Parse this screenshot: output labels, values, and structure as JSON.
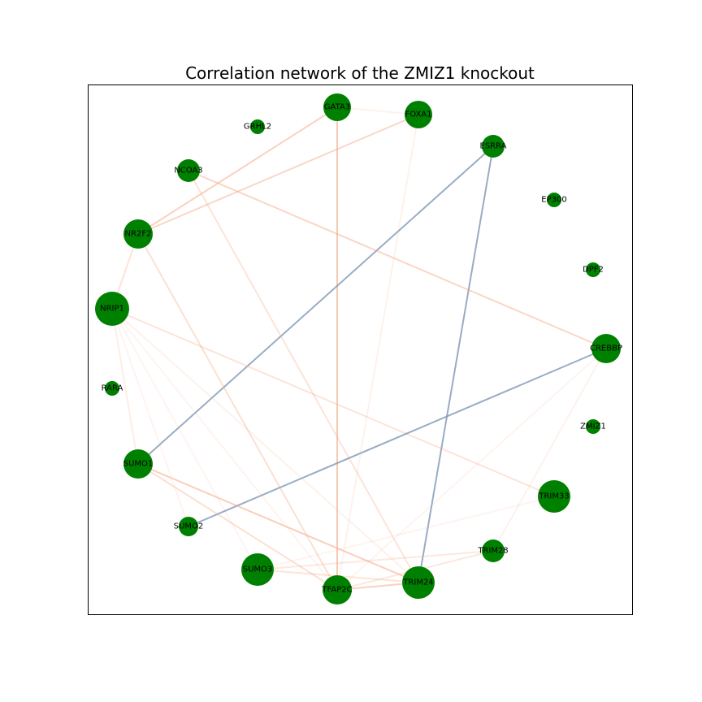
{
  "title": "Correlation network of the ZMIZ1 knockout",
  "colors": {
    "node": "#008000",
    "positive_edge": "#f4a582",
    "negative_edge": "#7f97b5",
    "frame": "#000000"
  },
  "nodes": [
    {
      "id": "GATA3",
      "label": "GATA3"
    },
    {
      "id": "FOXA1",
      "label": "FOXA1"
    },
    {
      "id": "GRHL2",
      "label": "GRHL2"
    },
    {
      "id": "ESRRA",
      "label": "ESRRA"
    },
    {
      "id": "NCOA3",
      "label": "NCOA3"
    },
    {
      "id": "EP300",
      "label": "EP300"
    },
    {
      "id": "NR2F2",
      "label": "NR2F2"
    },
    {
      "id": "DPF2",
      "label": "DPF2"
    },
    {
      "id": "NRIP1",
      "label": "NRIP1"
    },
    {
      "id": "CREBBP",
      "label": "CREBBP"
    },
    {
      "id": "RARA",
      "label": "RARA"
    },
    {
      "id": "ZMIZ1",
      "label": "ZMIZ1"
    },
    {
      "id": "SUMO1",
      "label": "SUMO1"
    },
    {
      "id": "TRIM33",
      "label": "TRIM33"
    },
    {
      "id": "SUMO2",
      "label": "SUMO2"
    },
    {
      "id": "TRIM28",
      "label": "TRIM28"
    },
    {
      "id": "SUMO3",
      "label": "SUMO3"
    },
    {
      "id": "TRIM24",
      "label": "TRIM24"
    },
    {
      "id": "TFAP2C",
      "label": "TFAP2C"
    }
  ],
  "edges": [
    {
      "source": "GATA3",
      "target": "FOXA1",
      "sign": "positive",
      "strength": 0.15
    },
    {
      "source": "GATA3",
      "target": "NR2F2",
      "sign": "positive",
      "strength": 0.5
    },
    {
      "source": "GATA3",
      "target": "TFAP2C",
      "sign": "positive",
      "strength": 0.6
    },
    {
      "source": "FOXA1",
      "target": "NR2F2",
      "sign": "positive",
      "strength": 0.45
    },
    {
      "source": "FOXA1",
      "target": "TFAP2C",
      "sign": "positive",
      "strength": 0.15
    },
    {
      "source": "ESRRA",
      "target": "SUMO1",
      "sign": "negative",
      "strength": 0.8
    },
    {
      "source": "ESRRA",
      "target": "TRIM24",
      "sign": "negative",
      "strength": 0.8
    },
    {
      "source": "NCOA3",
      "target": "CREBBP",
      "sign": "positive",
      "strength": 0.45
    },
    {
      "source": "NCOA3",
      "target": "TRIM24",
      "sign": "positive",
      "strength": 0.3
    },
    {
      "source": "NR2F2",
      "target": "NRIP1",
      "sign": "positive",
      "strength": 0.3
    },
    {
      "source": "NR2F2",
      "target": "TFAP2C",
      "sign": "positive",
      "strength": 0.35
    },
    {
      "source": "NRIP1",
      "target": "SUMO1",
      "sign": "positive",
      "strength": 0.2
    },
    {
      "source": "NRIP1",
      "target": "TRIM33",
      "sign": "positive",
      "strength": 0.3
    },
    {
      "source": "NRIP1",
      "target": "TRIM24",
      "sign": "positive",
      "strength": 0.15
    },
    {
      "source": "NRIP1",
      "target": "SUMO3",
      "sign": "positive",
      "strength": 0.1
    },
    {
      "source": "NRIP1",
      "target": "TFAP2C",
      "sign": "positive",
      "strength": 0.12
    },
    {
      "source": "NRIP1",
      "target": "SUMO2",
      "sign": "positive",
      "strength": 0.08
    },
    {
      "source": "CREBBP",
      "target": "SUMO2",
      "sign": "negative",
      "strength": 0.8
    },
    {
      "source": "CREBBP",
      "target": "TRIM28",
      "sign": "positive",
      "strength": 0.15
    },
    {
      "source": "CREBBP",
      "target": "TFAP2C",
      "sign": "positive",
      "strength": 0.12
    },
    {
      "source": "SUMO1",
      "target": "TRIM24",
      "sign": "positive",
      "strength": 0.55
    },
    {
      "source": "SUMO1",
      "target": "TFAP2C",
      "sign": "positive",
      "strength": 0.35
    },
    {
      "source": "TRIM33",
      "target": "SUMO3",
      "sign": "positive",
      "strength": 0.1
    },
    {
      "source": "TRIM28",
      "target": "SUMO3",
      "sign": "positive",
      "strength": 0.25
    },
    {
      "source": "TRIM28",
      "target": "TFAP2C",
      "sign": "positive",
      "strength": 0.25
    },
    {
      "source": "TRIM24",
      "target": "TFAP2C",
      "sign": "positive",
      "strength": 0.5
    },
    {
      "source": "TRIM24",
      "target": "SUMO3",
      "sign": "positive",
      "strength": 0.3
    }
  ]
}
